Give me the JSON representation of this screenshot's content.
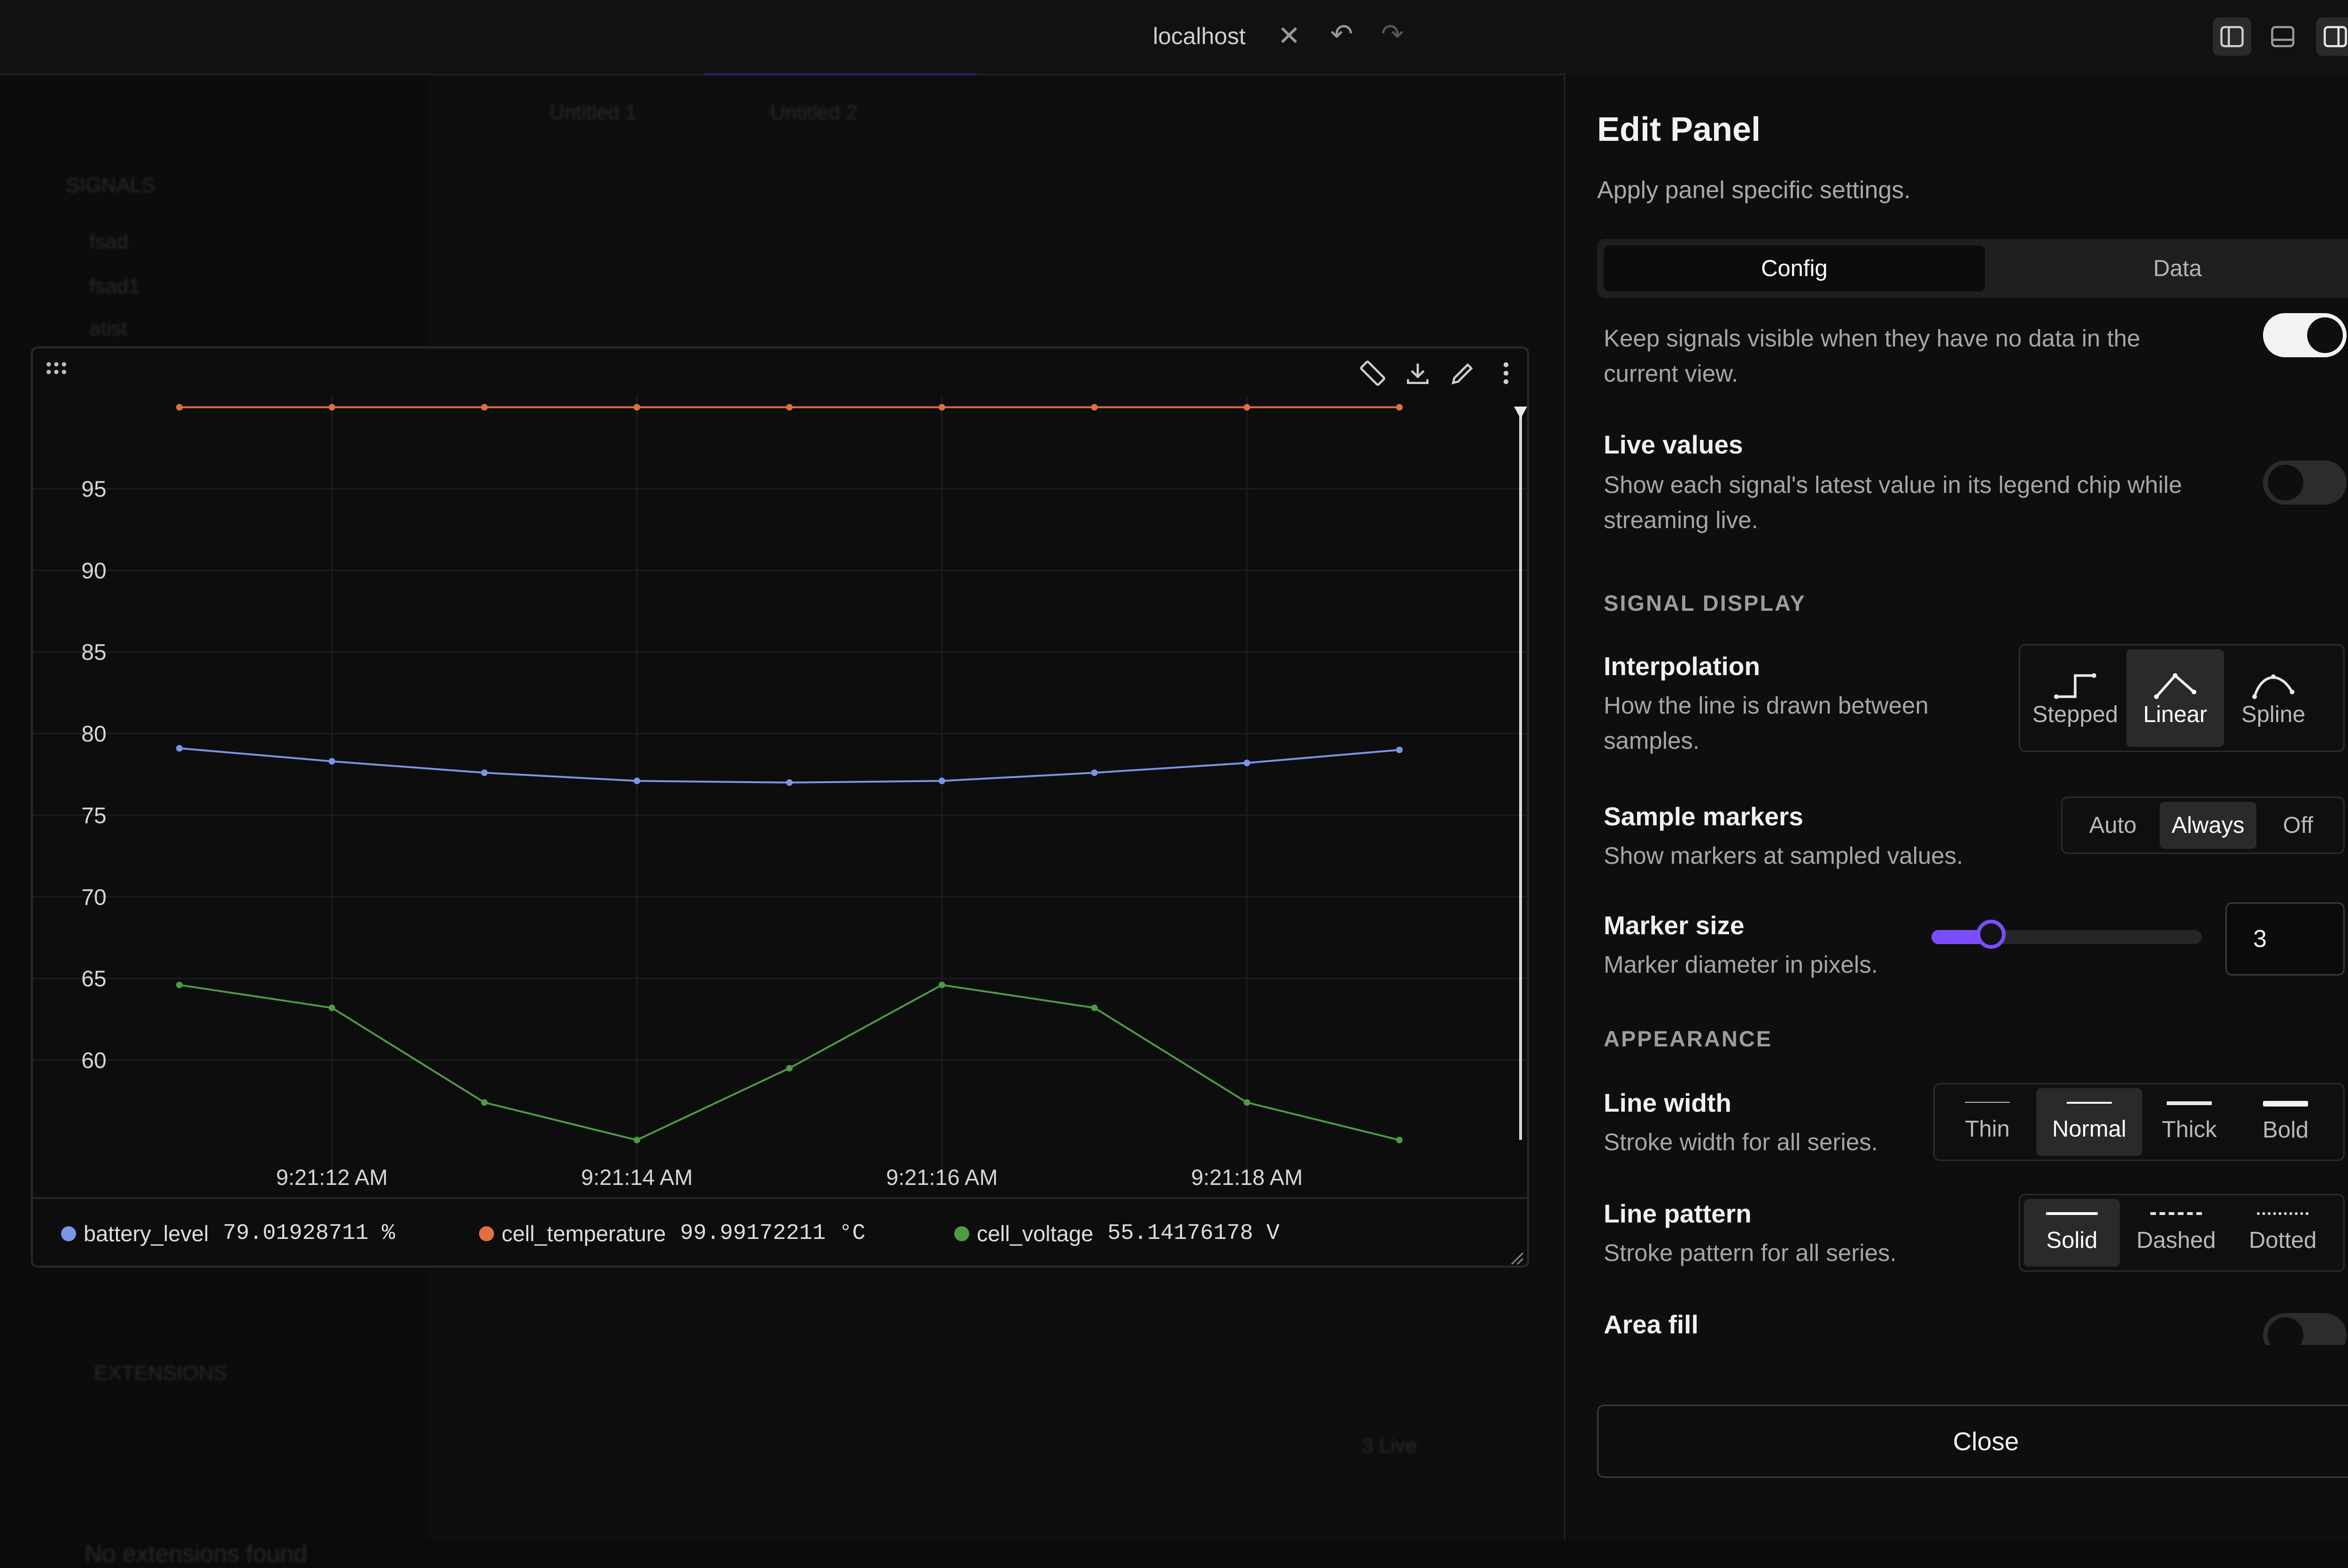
{
  "topbar": {
    "url": "localhost"
  },
  "background_app": {
    "tabs": [
      "Untitled 1",
      "Untitled 2"
    ],
    "sidebar_section": "SIGNALS",
    "sidebar_items": [
      "fsad",
      "fsad1",
      "atist"
    ],
    "extensions_section": "EXTENSIONS",
    "extensions_empty": "No extensions found",
    "bottom_badge": "3 Live"
  },
  "chart_data": {
    "type": "line",
    "x": [
      "9:21:11",
      "9:21:12",
      "9:21:13",
      "9:21:14",
      "9:21:15",
      "9:21:16",
      "9:21:17",
      "9:21:18",
      "9:21:19"
    ],
    "x_tick_labels": [
      "9:21:12 AM",
      "9:21:14 AM",
      "9:21:16 AM",
      "9:21:18 AM"
    ],
    "y_tick_labels": [
      "95",
      "90",
      "85",
      "80",
      "75",
      "70",
      "65",
      "60"
    ],
    "ylim": [
      55,
      100
    ],
    "grid": true,
    "series": [
      {
        "name": "cell_temperature",
        "color": "#e0703f",
        "values": [
          99.99,
          99.99,
          99.99,
          99.99,
          99.99,
          99.99,
          99.99,
          99.99,
          99.99
        ]
      },
      {
        "name": "battery_level",
        "color": "#7b95e8",
        "values": [
          79.1,
          78.3,
          77.6,
          77.1,
          77.0,
          77.1,
          77.6,
          78.2,
          79.0
        ]
      },
      {
        "name": "cell_voltage",
        "color": "#4f9a45",
        "values": [
          64.6,
          63.2,
          57.4,
          55.1,
          59.5,
          64.6,
          63.2,
          57.4,
          55.1
        ]
      }
    ]
  },
  "legend": [
    {
      "name": "battery_level",
      "value": "79.01928711 %",
      "color": "#7b95e8"
    },
    {
      "name": "cell_temperature",
      "value": "99.99172211 °C",
      "color": "#e0703f"
    },
    {
      "name": "cell_voltage",
      "value": "55.14176178 V",
      "color": "#4f9a45"
    }
  ],
  "edit_panel": {
    "title": "Edit Panel",
    "subtitle": "Apply panel specific settings.",
    "tabs": [
      "Config",
      "Data"
    ],
    "keep_empty_desc": "Keep signals visible when they have no data in the current view.",
    "live_values": {
      "label": "Live values",
      "desc": "Show each signal's latest value in its legend chip while streaming live."
    },
    "signal_display_section": "SIGNAL DISPLAY",
    "interpolation": {
      "label": "Interpolation",
      "desc": "How the line is drawn between samples.",
      "options": [
        "Stepped",
        "Linear",
        "Spline"
      ],
      "selected": "Linear"
    },
    "sample_markers": {
      "label": "Sample markers",
      "desc": "Show markers at sampled values.",
      "options": [
        "Auto",
        "Always",
        "Off"
      ],
      "selected": "Always"
    },
    "marker_size": {
      "label": "Marker size",
      "desc": "Marker diameter in pixels.",
      "value": "3",
      "level": 0.22
    },
    "appearance_section": "APPEARANCE",
    "line_width": {
      "label": "Line width",
      "desc": "Stroke width for all series.",
      "options": [
        "Thin",
        "Normal",
        "Thick",
        "Bold"
      ],
      "selected": "Normal"
    },
    "line_pattern": {
      "label": "Line pattern",
      "desc": "Stroke pattern for all series.",
      "options": [
        "Solid",
        "Dashed",
        "Dotted"
      ],
      "selected": "Solid"
    },
    "area_fill": {
      "label": "Area fill"
    },
    "close_label": "Close",
    "accent": "#7c4dff"
  }
}
